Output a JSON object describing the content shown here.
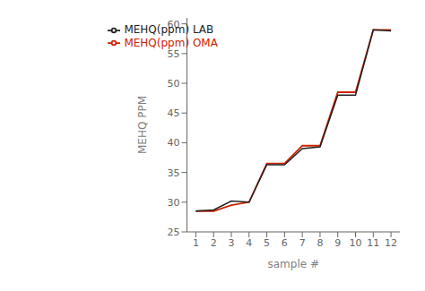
{
  "chart_data": {
    "type": "line",
    "x": [
      1,
      2,
      3,
      4,
      5,
      6,
      7,
      8,
      9,
      10,
      11,
      12
    ],
    "series": [
      {
        "name": "MEHQ(ppm) OMA",
        "color": "#cc2200",
        "values": [
          28.5,
          28.5,
          29.5,
          30.0,
          36.5,
          36.5,
          39.5,
          39.5,
          48.5,
          48.5,
          59.0,
          59.0
        ]
      },
      {
        "name": "MEHQ(ppm) LAB",
        "color": "#222222",
        "values": [
          28.5,
          28.7,
          30.2,
          30.0,
          36.3,
          36.3,
          39.0,
          39.3,
          48.0,
          48.0,
          59.0,
          58.8
        ]
      }
    ],
    "xlabel": "sample #",
    "ylabel": "MEHQ PPM",
    "xlim": [
      0.5,
      12.5
    ],
    "xticks": [
      1,
      2,
      3,
      4,
      5,
      6,
      7,
      8,
      9,
      10,
      11,
      12
    ],
    "ylim": [
      25,
      61
    ],
    "yticks": [
      25,
      30,
      35,
      40,
      45,
      50,
      55,
      60
    ],
    "legend": "upper left"
  }
}
